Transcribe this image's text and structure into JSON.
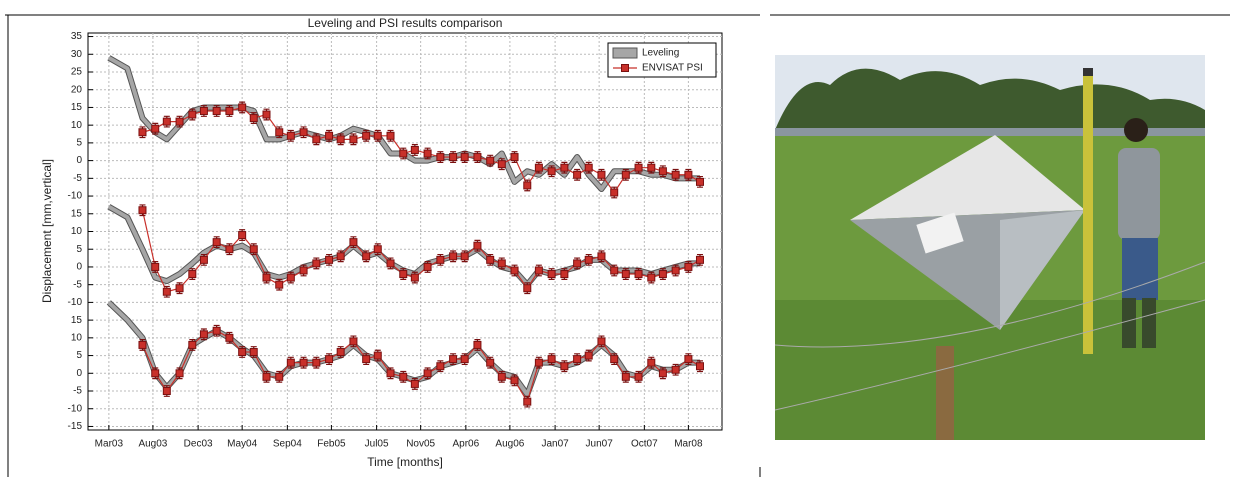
{
  "chart_data": {
    "type": "line",
    "title": "Leveling and PSI results comparison",
    "x_label": "Time [months]",
    "y_label": "Displacement [mm,vertical]",
    "xlim": [
      2002.99,
      2008.46
    ],
    "ylim": [
      -76,
      36
    ],
    "grid": true,
    "legend": "upper-right",
    "xticks": [
      {
        "value": 2003.17,
        "label": "Mar03"
      },
      {
        "value": 2003.55,
        "label": "Aug03"
      },
      {
        "value": 2003.94,
        "label": "Dec03"
      },
      {
        "value": 2004.32,
        "label": "May04"
      },
      {
        "value": 2004.71,
        "label": "Sep04"
      },
      {
        "value": 2005.09,
        "label": "Feb05"
      },
      {
        "value": 2005.48,
        "label": "Jul05"
      },
      {
        "value": 2005.86,
        "label": "Nov05"
      },
      {
        "value": 2006.25,
        "label": "Apr06"
      },
      {
        "value": 2006.63,
        "label": "Aug06"
      },
      {
        "value": 2007.02,
        "label": "Jan07"
      },
      {
        "value": 2007.4,
        "label": "Jun07"
      },
      {
        "value": 2007.79,
        "label": "Oct07"
      },
      {
        "value": 2008.17,
        "label": "Mar08"
      }
    ],
    "yticks": [
      35,
      30,
      25,
      20,
      15,
      10,
      5,
      0,
      -5,
      -10,
      {
        "value": -15,
        "label": "15"
      },
      {
        "value": -20,
        "label": "10"
      },
      {
        "value": -25,
        "label": "5"
      },
      {
        "value": -30,
        "label": "0"
      },
      {
        "value": -35,
        "label": "-5"
      },
      {
        "value": -40,
        "label": "-10"
      },
      {
        "value": -45,
        "label": "15"
      },
      {
        "value": -50,
        "label": "10"
      },
      {
        "value": -55,
        "label": "5"
      },
      {
        "value": -60,
        "label": "0"
      },
      {
        "value": -65,
        "label": "-5"
      },
      {
        "value": -70,
        "label": "-10"
      },
      {
        "value": -75,
        "label": "-15"
      }
    ],
    "x": [
      2003.46,
      2003.57,
      2003.67,
      2003.78,
      2003.89,
      2003.99,
      2004.1,
      2004.21,
      2004.32,
      2004.42,
      2004.53,
      2004.64,
      2004.74,
      2004.85,
      2004.96,
      2005.07,
      2005.17,
      2005.28,
      2005.39,
      2005.49,
      2005.6,
      2005.71,
      2005.81,
      2005.92,
      2006.03,
      2006.14,
      2006.24,
      2006.35,
      2006.46,
      2006.56,
      2006.67,
      2006.78,
      2006.88,
      2006.99,
      2007.1,
      2007.21,
      2007.31,
      2007.42,
      2007.53,
      2007.63,
      2007.74,
      2007.85,
      2007.95,
      2008.06,
      2008.17,
      2008.27
    ],
    "series": [
      {
        "name": "Leveling",
        "color": "#a6a6a6",
        "x": [
          2003.17,
          2003.33,
          2003.46,
          2003.57,
          2003.67,
          2003.78,
          2003.89,
          2003.99,
          2004.1,
          2004.21,
          2004.32,
          2004.42,
          2004.53,
          2004.64,
          2004.74,
          2004.85,
          2004.96,
          2005.07,
          2005.17,
          2005.28,
          2005.39,
          2005.49,
          2005.6,
          2005.71,
          2005.81,
          2005.92,
          2006.03,
          2006.14,
          2006.24,
          2006.35,
          2006.46,
          2006.56,
          2006.67,
          2006.78,
          2006.88,
          2006.99,
          2007.1,
          2007.21,
          2007.31,
          2007.42,
          2007.53,
          2007.63,
          2007.74,
          2007.85,
          2007.95,
          2008.06,
          2008.17,
          2008.27
        ],
        "values": [
          [
            29,
            26,
            12,
            8,
            6,
            10,
            14,
            15,
            15,
            15,
            15,
            14,
            6,
            6,
            7,
            8,
            7,
            6,
            7,
            9,
            8,
            7,
            2,
            2,
            0,
            0,
            1,
            1,
            2,
            1,
            -1,
            2,
            -6,
            -3,
            -4,
            -1,
            -4,
            1,
            -4,
            -8,
            -3,
            -3,
            -3,
            -4,
            -4,
            -5,
            -5,
            -5
          ],
          [
            -13,
            -16,
            -25,
            -33,
            -34,
            -32,
            -29,
            -26,
            -24,
            -25,
            -24,
            -26,
            -32,
            -33,
            -32,
            -30,
            -29,
            -28,
            -27,
            -24,
            -27,
            -26,
            -29,
            -31,
            -32,
            -29,
            -28,
            -27,
            -27,
            -25,
            -28,
            -30,
            -31,
            -35,
            -31,
            -32,
            -31,
            -30,
            -28,
            -28,
            -31,
            -31,
            -31,
            -32,
            -31,
            -30,
            -29,
            -29
          ],
          [
            -40,
            -45,
            -50,
            -60,
            -64,
            -60,
            -52,
            -50,
            -48,
            -50,
            -53,
            -55,
            -60,
            -61,
            -58,
            -57,
            -57,
            -56,
            -55,
            -52,
            -55,
            -56,
            -60,
            -61,
            -62,
            -61,
            -58,
            -57,
            -56,
            -53,
            -57,
            -60,
            -61,
            -66,
            -57,
            -57,
            -58,
            -57,
            -55,
            -52,
            -55,
            -60,
            -61,
            -58,
            -59,
            -59,
            -57,
            -57
          ]
        ]
      },
      {
        "name": "ENVISAT PSI",
        "color": "#c8302a",
        "error": 1.5,
        "values": [
          [
            8,
            9,
            11,
            11,
            13,
            14,
            14,
            14,
            15,
            12,
            13,
            8,
            7,
            8,
            6,
            7,
            6,
            6,
            7,
            7,
            7,
            2,
            3,
            2,
            1,
            1,
            1,
            1,
            0,
            -1,
            1,
            -7,
            -2,
            -3,
            -2,
            -4,
            -2,
            -4,
            -9,
            -4,
            -2,
            -2,
            -3,
            -4,
            -4,
            -6
          ],
          [
            -14,
            -30,
            -37,
            -36,
            -32,
            -28,
            -23,
            -25,
            -21,
            -25,
            -33,
            -35,
            -33,
            -31,
            -29,
            -28,
            -27,
            -23,
            -27,
            -25,
            -29,
            -32,
            -33,
            -30,
            -28,
            -27,
            -27,
            -24,
            -28,
            -29,
            -31,
            -36,
            -31,
            -32,
            -32,
            -29,
            -28,
            -27,
            -31,
            -32,
            -32,
            -33,
            -32,
            -31,
            -30,
            -28
          ],
          [
            -52,
            -60,
            -65,
            -60,
            -52,
            -49,
            -48,
            -50,
            -54,
            -54,
            -61,
            -61,
            -57,
            -57,
            -57,
            -56,
            -54,
            -51,
            -56,
            -55,
            -60,
            -61,
            -63,
            -60,
            -58,
            -56,
            -56,
            -52,
            -57,
            -61,
            -62,
            -68,
            -57,
            -56,
            -58,
            -56,
            -55,
            -51,
            -56,
            -61,
            -61,
            -57,
            -60,
            -59,
            -56,
            -58
          ]
        ]
      }
    ]
  }
}
